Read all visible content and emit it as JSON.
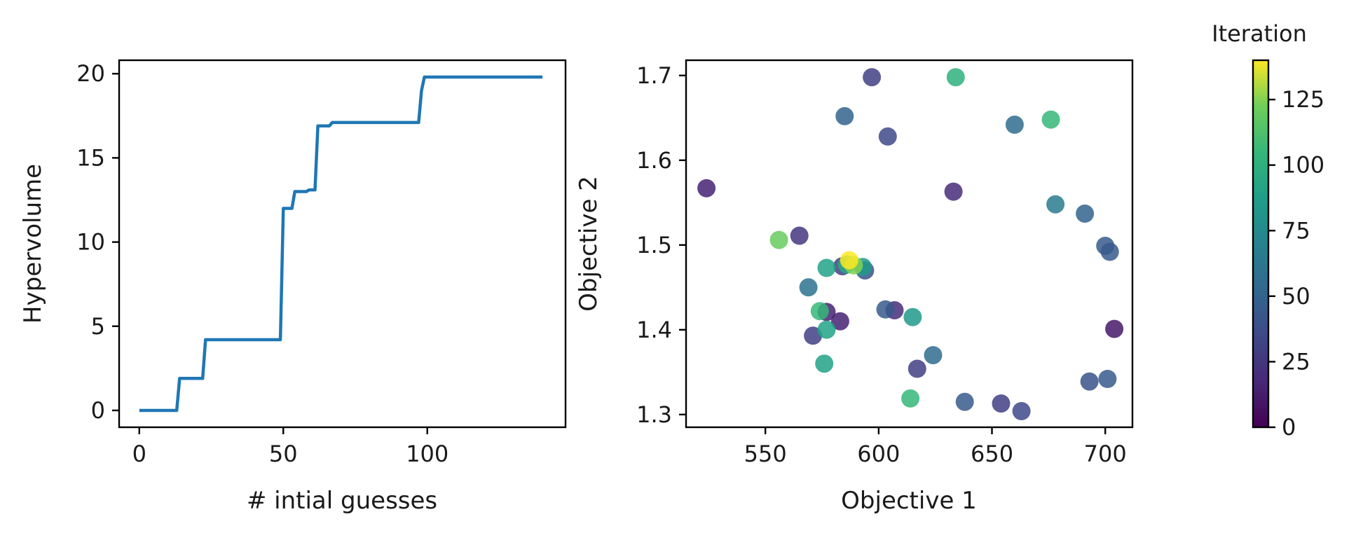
{
  "chart_data": [
    {
      "type": "line",
      "xlabel": "# intial guesses",
      "ylabel": "Hypervolume",
      "xlim": [
        -7,
        148
      ],
      "ylim": [
        -1,
        20.8
      ],
      "xticks": [
        0,
        50,
        100
      ],
      "yticks": [
        0,
        5,
        10,
        15,
        20
      ],
      "color": "#1f77b4",
      "x": [
        0,
        13,
        14,
        22,
        23,
        49,
        50,
        53,
        54,
        58,
        59,
        61,
        62,
        66,
        67,
        97,
        98,
        99,
        140
      ],
      "y": [
        0,
        0,
        1.9,
        1.9,
        4.2,
        4.2,
        12.0,
        12.0,
        13.0,
        13.0,
        13.1,
        13.1,
        16.9,
        16.9,
        17.1,
        17.1,
        19.0,
        19.8,
        19.8
      ]
    },
    {
      "type": "scatter",
      "xlabel": "Objective 1",
      "ylabel": "Objective 2",
      "xlim": [
        515,
        712
      ],
      "ylim": [
        1.285,
        1.718
      ],
      "xticks": [
        550,
        600,
        650,
        700
      ],
      "yticks": [
        1.3,
        1.4,
        1.5,
        1.6,
        1.7
      ],
      "colormap": "viridis",
      "colorbar": {
        "title": "Iteration",
        "range": [
          0,
          140
        ],
        "ticks": [
          0,
          25,
          50,
          75,
          100,
          125
        ]
      },
      "points": [
        {
          "x": 597,
          "y": 1.698,
          "c": 30
        },
        {
          "x": 634,
          "y": 1.698,
          "c": 100
        },
        {
          "x": 585,
          "y": 1.652,
          "c": 50
        },
        {
          "x": 660,
          "y": 1.642,
          "c": 55
        },
        {
          "x": 676,
          "y": 1.648,
          "c": 105
        },
        {
          "x": 604,
          "y": 1.628,
          "c": 35
        },
        {
          "x": 524,
          "y": 1.567,
          "c": 15
        },
        {
          "x": 633,
          "y": 1.563,
          "c": 20
        },
        {
          "x": 678,
          "y": 1.548,
          "c": 65
        },
        {
          "x": 691,
          "y": 1.537,
          "c": 50
        },
        {
          "x": 565,
          "y": 1.511,
          "c": 25
        },
        {
          "x": 556,
          "y": 1.506,
          "c": 120
        },
        {
          "x": 700,
          "y": 1.499,
          "c": 45
        },
        {
          "x": 702,
          "y": 1.492,
          "c": 45
        },
        {
          "x": 584,
          "y": 1.475,
          "c": 30
        },
        {
          "x": 594,
          "y": 1.47,
          "c": 40
        },
        {
          "x": 577,
          "y": 1.473,
          "c": 90
        },
        {
          "x": 593,
          "y": 1.474,
          "c": 85
        },
        {
          "x": 586,
          "y": 1.477,
          "c": 95
        },
        {
          "x": 569,
          "y": 1.45,
          "c": 60
        },
        {
          "x": 577,
          "y": 1.421,
          "c": 15
        },
        {
          "x": 574,
          "y": 1.422,
          "c": 105
        },
        {
          "x": 603,
          "y": 1.424,
          "c": 45
        },
        {
          "x": 607,
          "y": 1.423,
          "c": 20
        },
        {
          "x": 615,
          "y": 1.415,
          "c": 85
        },
        {
          "x": 583,
          "y": 1.41,
          "c": 15
        },
        {
          "x": 704,
          "y": 1.401,
          "c": 10
        },
        {
          "x": 577,
          "y": 1.4,
          "c": 90
        },
        {
          "x": 571,
          "y": 1.393,
          "c": 30
        },
        {
          "x": 624,
          "y": 1.37,
          "c": 55
        },
        {
          "x": 576,
          "y": 1.36,
          "c": 90
        },
        {
          "x": 617,
          "y": 1.354,
          "c": 30
        },
        {
          "x": 693,
          "y": 1.339,
          "c": 40
        },
        {
          "x": 701,
          "y": 1.342,
          "c": 45
        },
        {
          "x": 614,
          "y": 1.319,
          "c": 105
        },
        {
          "x": 638,
          "y": 1.315,
          "c": 45
        },
        {
          "x": 654,
          "y": 1.313,
          "c": 30
        },
        {
          "x": 663,
          "y": 1.304,
          "c": 35
        },
        {
          "x": 589,
          "y": 1.476,
          "c": 125
        },
        {
          "x": 587,
          "y": 1.482,
          "c": 140
        }
      ]
    }
  ]
}
